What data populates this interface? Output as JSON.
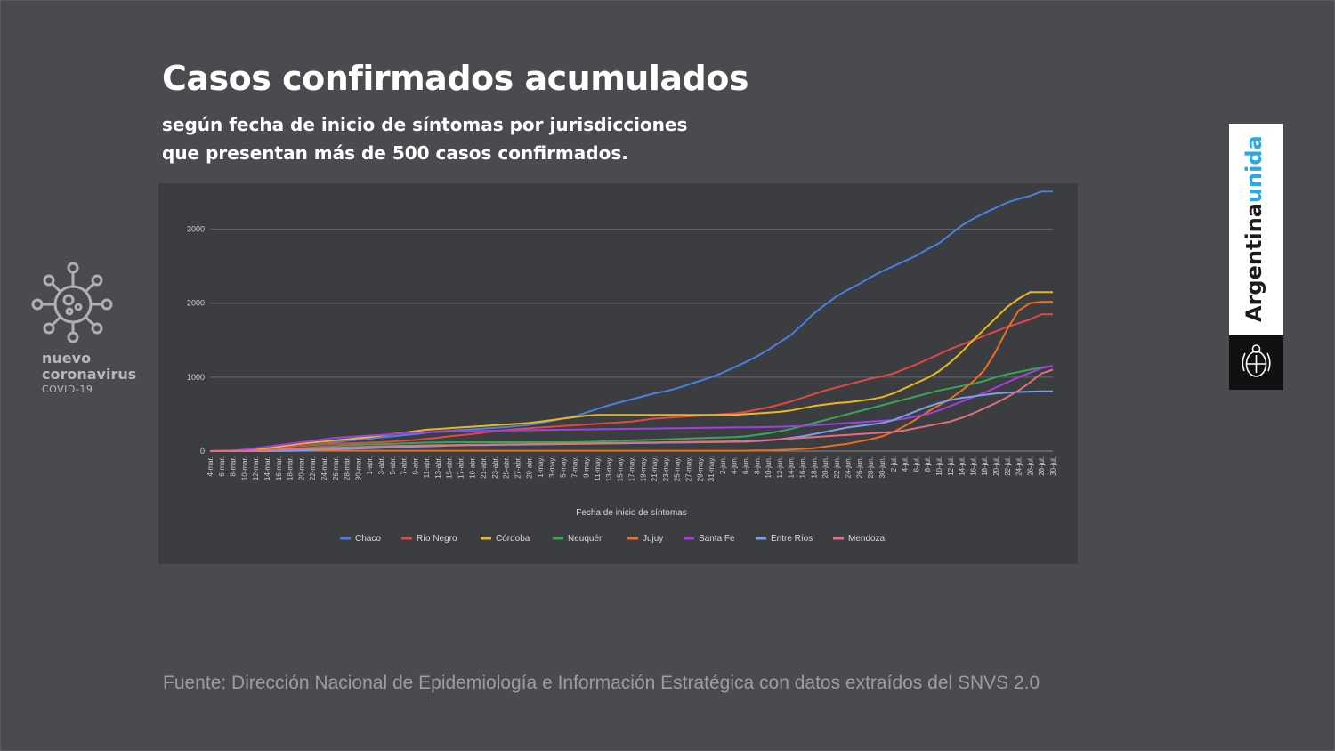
{
  "header": {
    "title": "Casos confirmados acumulados",
    "subtitle_line1": "según fecha de inicio de síntomas por jurisdicciones",
    "subtitle_line2": "que presentan más de 500 casos confirmados."
  },
  "brand": {
    "line1": "nuevo",
    "line2": "coronavirus",
    "line3": "COVID-19",
    "icon": "virus-icon"
  },
  "side_brand": {
    "word1": "Argentina",
    "word2": "unida",
    "emblem_icon": "coat-of-arms-icon"
  },
  "footer": {
    "source": "Fuente: Dirección Nacional de Epidemiología e Información Estratégica con datos extraídos del SNVS 2.0"
  },
  "chart_data": {
    "type": "line",
    "title": "",
    "xlabel": "Fecha de inicio de síntomas",
    "ylabel": "",
    "ylim": [
      0,
      3500
    ],
    "yticks": [
      0,
      1000,
      2000,
      3000
    ],
    "grid": true,
    "legend_position": "bottom",
    "background": "#3c3d40",
    "x": [
      "4-mar.",
      "6-mar.",
      "8-mar.",
      "10-mar.",
      "12-mar.",
      "14-mar.",
      "16-mar.",
      "18-mar.",
      "20-mar.",
      "22-mar.",
      "24-mar.",
      "26-mar.",
      "28-mar.",
      "30-mar.",
      "1-abr.",
      "3-abr.",
      "5-abr.",
      "7-abr.",
      "9-abr.",
      "11-abr.",
      "13-abr.",
      "15-abr.",
      "17-abr.",
      "19-abr.",
      "21-abr.",
      "23-abr.",
      "25-abr.",
      "27-abr.",
      "29-abr.",
      "1-may.",
      "3-may.",
      "5-may.",
      "7-may.",
      "9-may.",
      "11-may.",
      "13-may.",
      "15-may.",
      "17-may.",
      "19-may.",
      "21-may.",
      "23-may.",
      "25-may.",
      "27-may.",
      "29-may.",
      "31-may.",
      "2-jun.",
      "4-jun.",
      "6-jun.",
      "8-jun.",
      "10-jun.",
      "12-jun.",
      "14-jun.",
      "16-jun.",
      "18-jun.",
      "20-jun.",
      "22-jun.",
      "24-jun.",
      "26-jun.",
      "28-jun.",
      "30-jun.",
      "2-jul.",
      "4-jul.",
      "6-jul.",
      "8-jul.",
      "10-jul.",
      "12-jul.",
      "14-jul.",
      "16-jul.",
      "18-jul.",
      "20-jul.",
      "22-jul.",
      "24-jul.",
      "26-jul.",
      "28-jul.",
      "30-jul."
    ],
    "series": [
      {
        "name": "Chaco",
        "color": "#4a7fe0",
        "values": [
          0,
          2,
          5,
          10,
          20,
          35,
          50,
          60,
          70,
          85,
          100,
          120,
          140,
          155,
          170,
          185,
          200,
          215,
          230,
          250,
          265,
          275,
          285,
          295,
          305,
          315,
          325,
          340,
          355,
          380,
          410,
          440,
          470,
          520,
          570,
          620,
          660,
          700,
          740,
          780,
          810,
          850,
          900,
          950,
          1000,
          1060,
          1130,
          1200,
          1280,
          1370,
          1470,
          1570,
          1710,
          1860,
          1980,
          2090,
          2180,
          2260,
          2350,
          2430,
          2500,
          2570,
          2640,
          2730,
          2810,
          2930,
          3050,
          3140,
          3220,
          3290,
          3360,
          3410,
          3450,
          3510,
          3510
        ]
      },
      {
        "name": "Río Negro",
        "color": "#e04848",
        "values": [
          0,
          2,
          5,
          10,
          20,
          35,
          50,
          60,
          70,
          80,
          90,
          100,
          105,
          110,
          115,
          120,
          130,
          140,
          150,
          165,
          180,
          200,
          215,
          230,
          250,
          270,
          285,
          300,
          310,
          320,
          330,
          340,
          350,
          360,
          370,
          380,
          390,
          400,
          420,
          440,
          450,
          460,
          470,
          480,
          490,
          500,
          510,
          530,
          560,
          590,
          630,
          670,
          720,
          770,
          820,
          860,
          900,
          940,
          980,
          1010,
          1050,
          1110,
          1170,
          1240,
          1310,
          1380,
          1440,
          1500,
          1560,
          1620,
          1680,
          1730,
          1780,
          1850,
          1850
        ]
      },
      {
        "name": "Córdoba",
        "color": "#e8b820",
        "values": [
          0,
          2,
          5,
          10,
          20,
          40,
          60,
          80,
          100,
          115,
          130,
          145,
          160,
          175,
          190,
          210,
          230,
          250,
          270,
          290,
          300,
          310,
          320,
          330,
          340,
          350,
          360,
          370,
          380,
          400,
          420,
          440,
          460,
          480,
          490,
          490,
          490,
          490,
          490,
          490,
          490,
          490,
          490,
          490,
          490,
          490,
          490,
          500,
          510,
          520,
          530,
          550,
          580,
          610,
          630,
          650,
          660,
          680,
          700,
          730,
          780,
          850,
          920,
          990,
          1080,
          1200,
          1340,
          1500,
          1650,
          1800,
          1950,
          2060,
          2150,
          2150,
          2150
        ]
      },
      {
        "name": "Neuquén",
        "color": "#35a853",
        "values": [
          0,
          0,
          0,
          2,
          5,
          10,
          20,
          30,
          40,
          50,
          60,
          70,
          80,
          85,
          90,
          95,
          100,
          105,
          110,
          115,
          118,
          120,
          120,
          120,
          120,
          120,
          120,
          120,
          120,
          120,
          120,
          120,
          122,
          125,
          130,
          135,
          140,
          145,
          150,
          155,
          160,
          165,
          170,
          175,
          180,
          185,
          190,
          200,
          220,
          240,
          270,
          300,
          340,
          380,
          420,
          460,
          500,
          540,
          580,
          620,
          660,
          700,
          740,
          780,
          820,
          850,
          880,
          910,
          950,
          1000,
          1040,
          1070,
          1100,
          1130,
          1150
        ]
      },
      {
        "name": "Jujuy",
        "color": "#e87020",
        "values": [
          0,
          0,
          0,
          0,
          0,
          2,
          3,
          4,
          5,
          5,
          5,
          5,
          5,
          5,
          5,
          5,
          5,
          5,
          5,
          5,
          5,
          5,
          5,
          5,
          5,
          5,
          5,
          5,
          5,
          5,
          5,
          5,
          5,
          5,
          5,
          5,
          5,
          5,
          5,
          5,
          5,
          5,
          5,
          5,
          5,
          5,
          5,
          5,
          8,
          10,
          15,
          20,
          30,
          40,
          60,
          80,
          100,
          130,
          160,
          200,
          260,
          340,
          430,
          530,
          620,
          710,
          820,
          940,
          1100,
          1350,
          1650,
          1900,
          2000,
          2020,
          2020
        ]
      },
      {
        "name": "Santa Fe",
        "color": "#a040e0",
        "values": [
          0,
          5,
          10,
          20,
          40,
          60,
          80,
          100,
          120,
          140,
          160,
          180,
          190,
          200,
          210,
          220,
          230,
          240,
          250,
          255,
          260,
          265,
          270,
          272,
          275,
          278,
          280,
          282,
          284,
          286,
          288,
          290,
          292,
          294,
          296,
          298,
          300,
          302,
          304,
          306,
          308,
          310,
          312,
          314,
          316,
          318,
          320,
          322,
          324,
          326,
          330,
          335,
          340,
          350,
          360,
          370,
          380,
          390,
          400,
          410,
          420,
          440,
          470,
          500,
          550,
          610,
          670,
          730,
          790,
          860,
          930,
          1000,
          1060,
          1120,
          1150
        ]
      },
      {
        "name": "Entre Ríos",
        "color": "#7a9fe8",
        "values": [
          0,
          0,
          0,
          0,
          0,
          0,
          2,
          5,
          10,
          15,
          20,
          25,
          30,
          35,
          40,
          45,
          50,
          55,
          60,
          65,
          70,
          75,
          78,
          80,
          82,
          84,
          86,
          88,
          90,
          92,
          94,
          96,
          98,
          100,
          102,
          104,
          106,
          108,
          110,
          112,
          114,
          116,
          118,
          120,
          122,
          124,
          126,
          128,
          135,
          145,
          160,
          180,
          200,
          230,
          260,
          290,
          320,
          340,
          360,
          380,
          420,
          480,
          540,
          600,
          650,
          690,
          720,
          740,
          760,
          780,
          790,
          800,
          805,
          810,
          810
        ]
      },
      {
        "name": "Mendoza",
        "color": "#e07080",
        "values": [
          0,
          0,
          2,
          5,
          10,
          15,
          20,
          25,
          30,
          35,
          40,
          45,
          50,
          55,
          60,
          65,
          70,
          72,
          75,
          78,
          80,
          82,
          84,
          86,
          88,
          90,
          92,
          94,
          96,
          98,
          100,
          102,
          104,
          106,
          108,
          110,
          112,
          114,
          116,
          118,
          120,
          122,
          124,
          126,
          128,
          130,
          132,
          134,
          140,
          150,
          160,
          170,
          180,
          190,
          200,
          210,
          220,
          230,
          240,
          250,
          260,
          280,
          310,
          340,
          370,
          400,
          450,
          510,
          580,
          650,
          730,
          820,
          930,
          1050,
          1100
        ]
      }
    ]
  }
}
